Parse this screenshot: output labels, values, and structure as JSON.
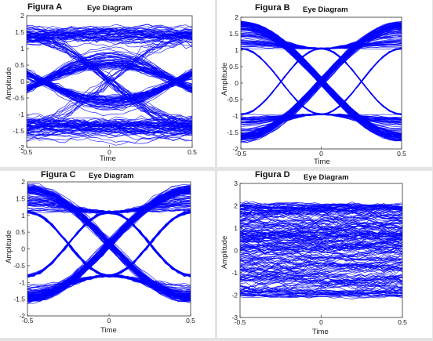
{
  "chart_data": [
    {
      "type": "line",
      "figure_label": "Figura A",
      "title": "Eye Diagram",
      "xlabel": "Time",
      "ylabel": "Amplitude",
      "xlim": [
        -0.5,
        0.5
      ],
      "ylim": [
        -2,
        2
      ],
      "x_ticks": [
        "-0.5",
        "0",
        "0.5"
      ],
      "y_ticks": [
        "-2",
        "-1.5",
        "-1",
        "-0.5",
        "0",
        "0.5",
        "1",
        "1.5",
        "2"
      ],
      "grid": false,
      "trace_color": "#0000ff",
      "eye": {
        "rail_high": 1.45,
        "rail_low": -1.45,
        "rail_spread": 0.18,
        "eye_opening": 0.45,
        "eye_noise": 0.1,
        "crossing_offset": 0.0,
        "noise": 0.06
      }
    },
    {
      "type": "line",
      "figure_label": "Figura B",
      "title": "Eye Diagram",
      "xlabel": "Time",
      "ylabel": "Amplitude",
      "xlim": [
        -0.5,
        0.5
      ],
      "ylim": [
        -2,
        2
      ],
      "x_ticks": [
        "-0.5",
        "0",
        "0.5"
      ],
      "y_ticks": [
        "-2",
        "-1.5",
        "-1",
        "-0.5",
        "0",
        "0.5",
        "1",
        "1.5",
        "2"
      ],
      "grid": false,
      "trace_color": "#0000ff",
      "eye": {
        "rail_high": 1.3,
        "rail_low": -1.2,
        "rail_spread": 0.2,
        "cross_high": 1.05,
        "cross_low": -0.95,
        "crossing_at": 0.0,
        "noise": 0.02
      }
    },
    {
      "type": "line",
      "figure_label": "Figura C",
      "title": "Eye Diagram",
      "xlabel": "Time",
      "ylabel": "Amplitude",
      "xlim": [
        -0.5,
        0.5
      ],
      "ylim": [
        -2,
        2
      ],
      "x_ticks": [
        "-0.5",
        "0",
        "0.5"
      ],
      "y_ticks": [
        "-2",
        "-1.5",
        "-1",
        "-0.5",
        "0",
        "0.5",
        "1",
        "1.5",
        "2"
      ],
      "grid": false,
      "trace_color": "#0000ff",
      "eye": {
        "rail_high": 1.35,
        "rail_low": -1.3,
        "rail_spread": 0.2,
        "cross_high": 1.1,
        "cross_low": -0.8,
        "crossing_at": 0.0,
        "noise": 0.04
      }
    },
    {
      "type": "line",
      "figure_label": "Figura D",
      "title": "Eye Diagram",
      "xlabel": "Time",
      "ylabel": "Amplitude",
      "xlim": [
        -0.5,
        0.5
      ],
      "ylim": [
        -3,
        3
      ],
      "x_ticks": [
        "-0.5",
        "0",
        "0.5"
      ],
      "y_ticks": [
        "-3",
        "-2",
        "-1",
        "0",
        "1",
        "2",
        "3"
      ],
      "grid": false,
      "trace_color": "#0000ff",
      "eye": {
        "rail_high": 1.9,
        "rail_low": -1.9,
        "closed": true,
        "noise": 0.12
      }
    }
  ]
}
